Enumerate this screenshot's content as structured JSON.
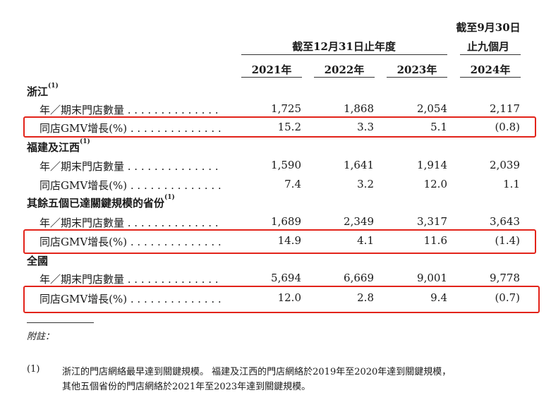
{
  "header": {
    "period_group": "截至12月31日止年度",
    "nine_month_line1": "截至9月30日",
    "nine_month_line2": "止九個月",
    "years": [
      "2021年",
      "2022年",
      "2023年",
      "2024年"
    ]
  },
  "sections": [
    {
      "name": "浙江",
      "note": "(1)",
      "rows": [
        {
          "label": "年／期末門店數量 . . . . . . . . . . . . . .",
          "values": [
            "1,725",
            "1,868",
            "2,054",
            "2,117"
          ]
        },
        {
          "label": "同店GMV增長(%) . . . . . . . . . . . . . .",
          "values": [
            "15.2",
            "3.3",
            "5.1",
            "(0.8)"
          ],
          "highlighted": true
        }
      ]
    },
    {
      "name": "福建及江西",
      "note": "(1)",
      "rows": [
        {
          "label": "年／期末門店數量 . . . . . . . . . . . . . .",
          "values": [
            "1,590",
            "1,641",
            "1,914",
            "2,039"
          ]
        },
        {
          "label": "同店GMV增長(%) . . . . . . . . . . . . . .",
          "values": [
            "7.4",
            "3.2",
            "12.0",
            "1.1"
          ]
        }
      ]
    },
    {
      "name": "其餘五個已達關鍵規模的省份",
      "note": "(1)",
      "rows": [
        {
          "label": "年／期末門店數量 . . . . . . . . . . . . . .",
          "values": [
            "1,689",
            "2,349",
            "3,317",
            "3,643"
          ]
        },
        {
          "label": "同店GMV增長(%) . . . . . . . . . . . . . .",
          "values": [
            "14.9",
            "4.1",
            "11.6",
            "(1.4)"
          ],
          "highlighted": true
        }
      ]
    },
    {
      "name": "全國",
      "note": "",
      "rows": [
        {
          "label": "年／期末門店數量 . . . . . . . . . . . . . .",
          "values": [
            "5,694",
            "6,669",
            "9,001",
            "9,778"
          ]
        },
        {
          "label": "同店GMV增長(%) . . . . . . . . . . . . . .",
          "values": [
            "12.0",
            "2.8",
            "9.4",
            "(0.7)"
          ],
          "highlighted": true
        }
      ]
    }
  ],
  "footnotes": {
    "label": "附註：",
    "items": [
      {
        "marker": "(1)",
        "line1": "浙江的門店網絡最早達到關鍵規模。 福建及江西的門店網絡於2019年至2020年達到關鍵規模，",
        "line2": "其他五個省份的門店網絡於2021年至2023年達到關鍵規模。"
      }
    ]
  },
  "colors": {
    "highlight_border": "#e2231a",
    "text": "#1a1a1a"
  }
}
